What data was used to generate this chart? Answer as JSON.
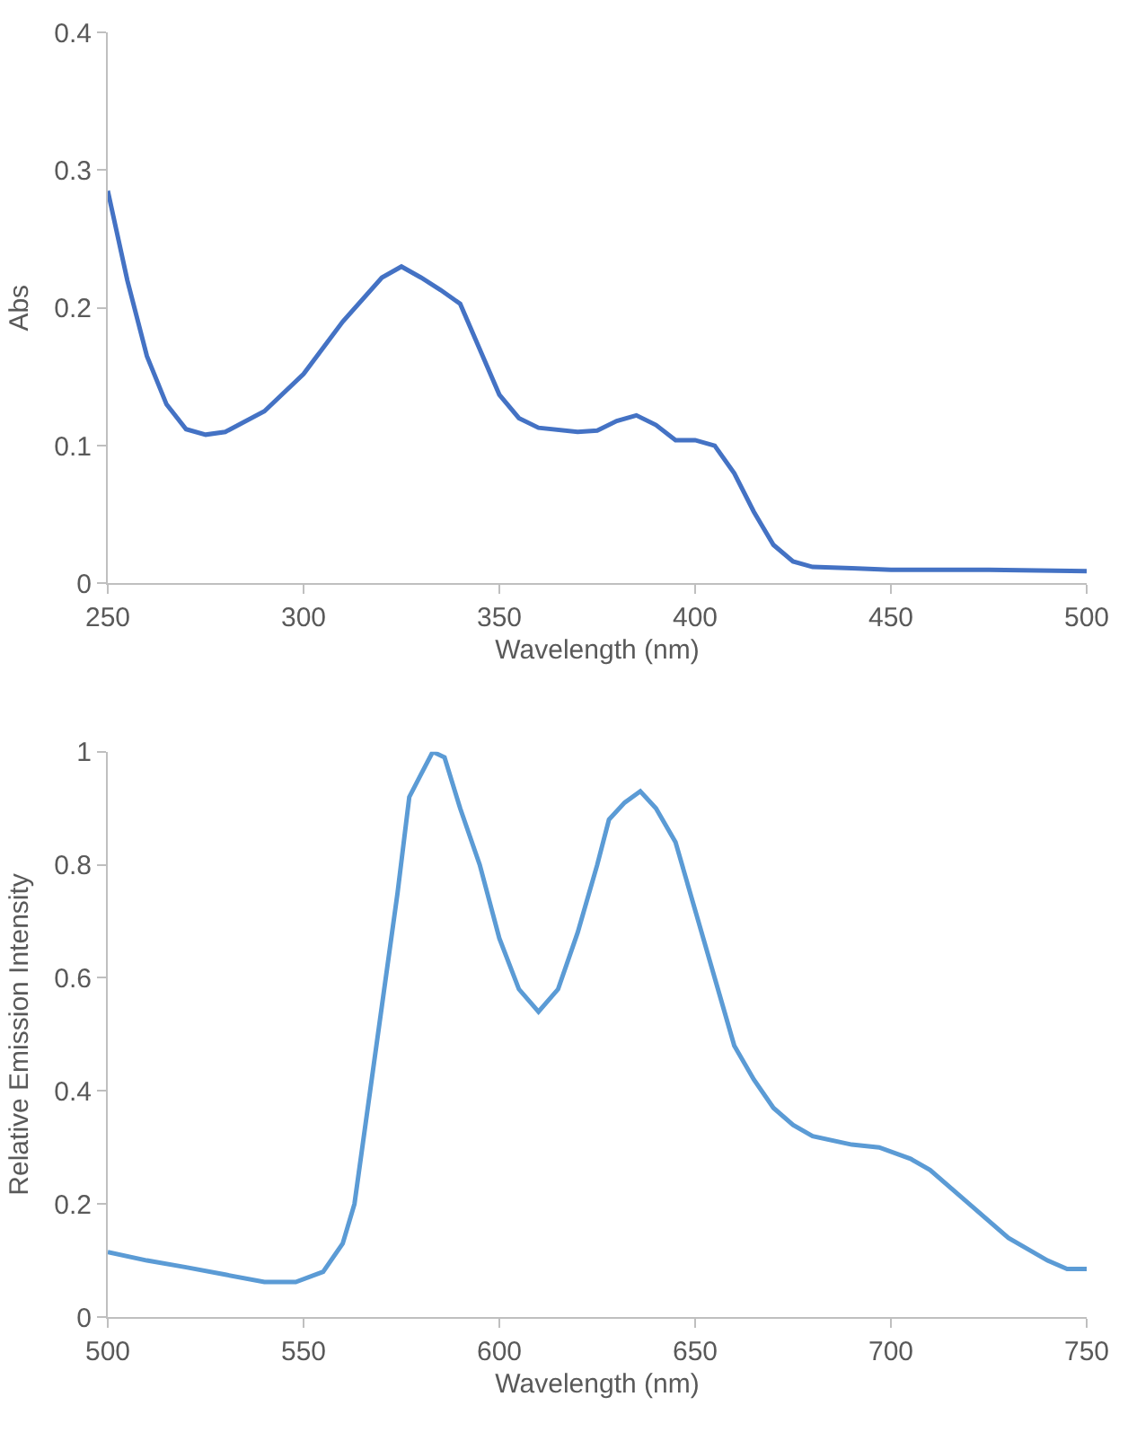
{
  "chart_data": [
    {
      "type": "line",
      "xlabel": "Wavelength (nm)",
      "ylabel": "Abs",
      "xlim": [
        250,
        500
      ],
      "xticks": [
        250,
        300,
        350,
        400,
        450,
        500
      ],
      "ylim": [
        0,
        0.4
      ],
      "yticks": [
        0,
        0.1,
        0.2,
        0.3,
        0.4
      ],
      "series": [
        {
          "color": "#4472c4",
          "x": [
            250,
            255,
            260,
            265,
            270,
            275,
            280,
            290,
            300,
            310,
            320,
            325,
            330,
            335,
            340,
            345,
            350,
            355,
            360,
            370,
            375,
            380,
            385,
            390,
            395,
            400,
            405,
            410,
            415,
            420,
            425,
            430,
            440,
            450,
            475,
            500
          ],
          "values": [
            0.285,
            0.22,
            0.165,
            0.13,
            0.112,
            0.108,
            0.11,
            0.125,
            0.152,
            0.19,
            0.222,
            0.23,
            0.222,
            0.213,
            0.203,
            0.17,
            0.137,
            0.12,
            0.113,
            0.11,
            0.111,
            0.118,
            0.122,
            0.115,
            0.104,
            0.104,
            0.1,
            0.08,
            0.052,
            0.028,
            0.016,
            0.012,
            0.011,
            0.01,
            0.01,
            0.009
          ]
        }
      ]
    },
    {
      "type": "line",
      "xlabel": "Wavelength (nm)",
      "ylabel": "Relative Emission Intensity",
      "xlim": [
        500,
        750
      ],
      "xticks": [
        500,
        550,
        600,
        650,
        700,
        750
      ],
      "ylim": [
        0,
        1
      ],
      "yticks": [
        0,
        0.2,
        0.4,
        0.6,
        0.8,
        1
      ],
      "series": [
        {
          "color": "#5b9bd5",
          "x": [
            500,
            510,
            520,
            530,
            540,
            548,
            555,
            560,
            563,
            567,
            570,
            574,
            577,
            580,
            583,
            586,
            590,
            595,
            600,
            605,
            610,
            615,
            620,
            625,
            628,
            632,
            636,
            640,
            645,
            650,
            655,
            660,
            665,
            670,
            675,
            680,
            690,
            697,
            705,
            710,
            720,
            730,
            740,
            745,
            750
          ],
          "values": [
            0.115,
            0.1,
            0.088,
            0.075,
            0.062,
            0.062,
            0.08,
            0.13,
            0.2,
            0.4,
            0.55,
            0.75,
            0.92,
            0.96,
            1.0,
            0.99,
            0.9,
            0.8,
            0.67,
            0.58,
            0.54,
            0.58,
            0.68,
            0.8,
            0.88,
            0.91,
            0.93,
            0.9,
            0.84,
            0.72,
            0.6,
            0.48,
            0.42,
            0.37,
            0.34,
            0.32,
            0.305,
            0.3,
            0.28,
            0.26,
            0.2,
            0.14,
            0.1,
            0.085,
            0.085
          ]
        }
      ]
    }
  ]
}
